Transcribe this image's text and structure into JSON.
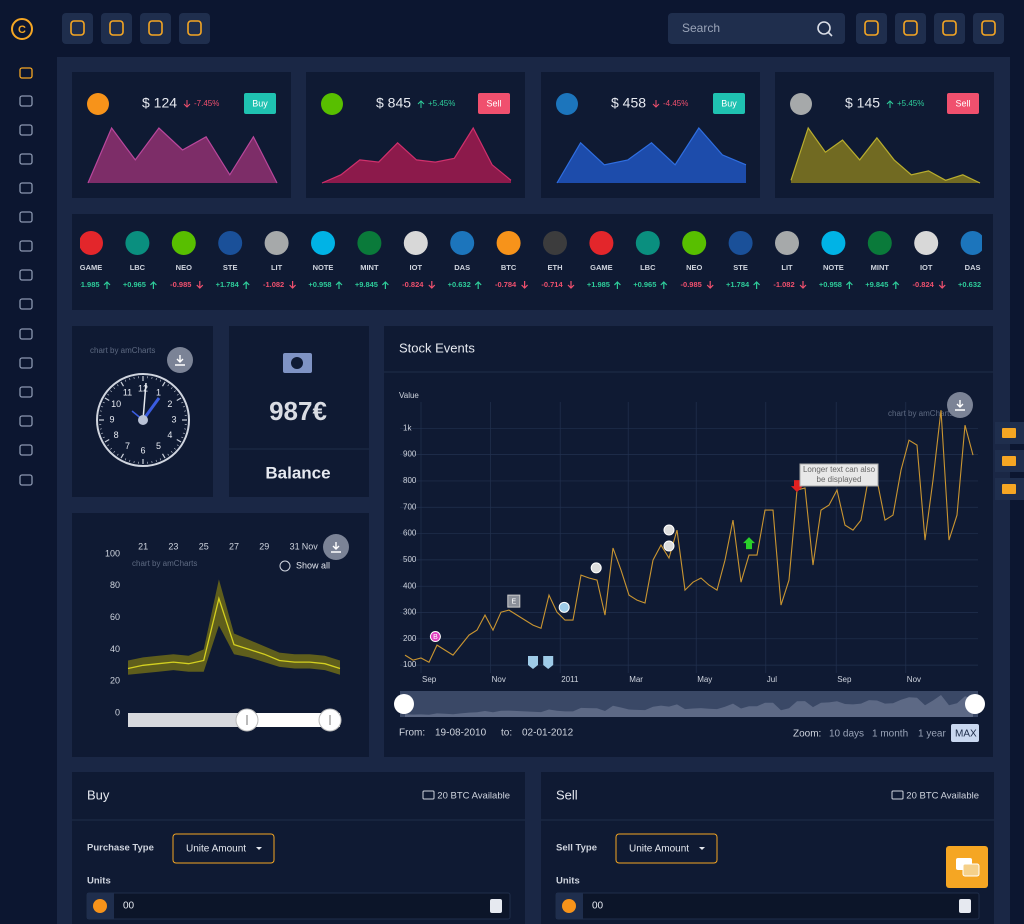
{
  "app": {
    "search": "Search"
  },
  "cards": [
    {
      "price": "$ 124",
      "change": "-7.45%",
      "action": "Buy",
      "action_color": "#1fc2b1",
      "icon_color": "#f7931a",
      "fill": "#7d2d68",
      "stroke": "#b9479c",
      "values": [
        0,
        100,
        42,
        100,
        60,
        84,
        15,
        84,
        0
      ]
    },
    {
      "price": "$ 845",
      "change": "+5.45%",
      "action": "Sell",
      "action_color": "#f0506e",
      "icon_color": "#58bf00",
      "fill": "#8c1a4b",
      "stroke": "#d0306c",
      "values": [
        0,
        15,
        42,
        38,
        73,
        42,
        38,
        45,
        100,
        33,
        5
      ]
    },
    {
      "price": "$ 458",
      "change": "-4.45%",
      "action": "Buy",
      "action_color": "#1fc2b1",
      "icon_color": "#1c75bc",
      "fill": "#1d4cab",
      "stroke": "#2f6ee0",
      "values": [
        0,
        73,
        33,
        42,
        73,
        33,
        100,
        51,
        33
      ]
    },
    {
      "price": "$ 145",
      "change": "+5.45%",
      "action": "Sell",
      "action_color": "#f0506e",
      "icon_color": "#a6a9aa",
      "fill": "#716a22",
      "stroke": "#b8ad2e",
      "values": [
        5,
        100,
        56,
        78,
        42,
        82,
        42,
        15,
        22,
        5,
        15,
        0
      ]
    }
  ],
  "ticker": [
    {
      "name": "GAME",
      "change": "+1.985",
      "color": "#e3262b"
    },
    {
      "name": "LBC",
      "change": "+0.965",
      "color": "#0a8f7f"
    },
    {
      "name": "NEO",
      "change": "-0.985",
      "color": "#58bf00"
    },
    {
      "name": "STE",
      "change": "+1.784",
      "color": "#1a5099"
    },
    {
      "name": "LIT",
      "change": "-1.082",
      "color": "#a6a9aa"
    },
    {
      "name": "NOTE",
      "change": "+0.958",
      "color": "#00b3e6"
    },
    {
      "name": "MINT",
      "change": "+9.845",
      "color": "#0a7a3a"
    },
    {
      "name": "IOT",
      "change": "-0.824",
      "color": "#d8d8d8"
    },
    {
      "name": "DAS",
      "change": "+0.632",
      "color": "#1c75bc"
    },
    {
      "name": "BTC",
      "change": "-0.784",
      "color": "#f7931a"
    },
    {
      "name": "ETH",
      "change": "-0.714",
      "color": "#3c3c3d"
    }
  ],
  "clock": {
    "credit": "chart by amCharts",
    "numbers": [
      12,
      1,
      2,
      3,
      4,
      5,
      6,
      7,
      8,
      9,
      10,
      11
    ]
  },
  "balance": {
    "amount": "987€",
    "label": "Balance"
  },
  "chart_data": [
    {
      "type": "range",
      "credit": "chart by amCharts",
      "show_all": "Show all",
      "color": "#d4d020",
      "band_color": "#5f5e1c",
      "x": [
        20,
        21,
        22,
        23,
        24,
        25,
        26,
        27,
        28,
        29,
        30,
        31,
        32,
        33,
        34
      ],
      "values": [
        28,
        30,
        31,
        32,
        31,
        33,
        72,
        43,
        40,
        37,
        33,
        32,
        32,
        31,
        28
      ],
      "low": [
        24,
        25,
        26,
        27,
        26,
        26,
        55,
        37,
        35,
        32,
        29,
        28,
        28,
        27,
        24
      ],
      "high": [
        33,
        35,
        36,
        37,
        36,
        40,
        84,
        50,
        46,
        42,
        38,
        37,
        37,
        36,
        33
      ],
      "xlim": [
        20,
        34
      ],
      "ylim": [
        0,
        100
      ],
      "yticks": [
        0,
        20,
        40,
        60,
        80,
        100
      ],
      "xticks": [
        21,
        23,
        25,
        27,
        29,
        31,
        {
          "value": 32,
          "label": "Nov"
        }
      ]
    },
    {
      "type": "line",
      "title": "Stock Events",
      "ylabel": "Value",
      "credit": "chart by amCharts",
      "color": "#c99531",
      "grid": true,
      "values": [
        138,
        119,
        127,
        111,
        176,
        157,
        138,
        176,
        214,
        233,
        290,
        233,
        301,
        309,
        290,
        271,
        252,
        240,
        366,
        301,
        271,
        271,
        442,
        431,
        423,
        290,
        545,
        461,
        366,
        347,
        336,
        499,
        556,
        507,
        613,
        385,
        415,
        431,
        404,
        385,
        499,
        651,
        415,
        518,
        518,
        689,
        689,
        328,
        423,
        765,
        773,
        480,
        689,
        708,
        765,
        632,
        613,
        651,
        822,
        803,
        651,
        670,
        841,
        955,
        936,
        575,
        803,
        1069,
        575,
        670,
        1012,
        898
      ],
      "xlim": [
        0,
        71
      ],
      "ylim": [
        70,
        1100
      ],
      "yticks": [
        100,
        200,
        300,
        400,
        500,
        600,
        700,
        800,
        900,
        {
          "value": 1000,
          "label": "1k"
        }
      ],
      "xticks": [
        {
          "value": 2,
          "label": "Sep"
        },
        {
          "value": 10.7,
          "label": "Nov"
        },
        {
          "value": 19.4,
          "label": "2011"
        },
        {
          "value": 27.9,
          "label": "Mar"
        },
        {
          "value": 36.4,
          "label": "May"
        },
        {
          "value": 45.1,
          "label": "Jul"
        },
        {
          "value": 53.9,
          "label": "Sep"
        },
        {
          "value": 62.6,
          "label": "Nov"
        }
      ],
      "events": [
        {
          "x": 3.8,
          "label": "B",
          "shape": "circle",
          "color": "#e040c0"
        },
        {
          "x": 13.6,
          "label": "E",
          "shape": "square",
          "color": "#8a8f99"
        },
        {
          "x": 16,
          "shape": "flag",
          "color": "#9ecbe8"
        },
        {
          "x": 17.9,
          "shape": "flag",
          "color": "#9ecbe8"
        },
        {
          "x": 19.9,
          "shape": "circle",
          "color": "#9ecbe8"
        },
        {
          "x": 23.9,
          "shape": "circle",
          "color": "#dddddd"
        },
        {
          "x": 33,
          "shape": "circle",
          "color": "#dddddd"
        },
        {
          "x": 33,
          "shape": "circle",
          "color": "#dddddd"
        },
        {
          "x": 43,
          "shape": "arrow-up",
          "color": "#2ad02a"
        },
        {
          "x": 49,
          "shape": "arrow-down",
          "color": "#e02020",
          "text": "Longer text can also be displayed"
        }
      ],
      "from_label": "From:",
      "from": "19-08-2010",
      "to_label": "to:",
      "to": "02-01-2012",
      "zoom_label": "Zoom:",
      "zoom": [
        "10 days",
        "1 month",
        "1 year",
        "MAX"
      ],
      "zoom_active": 3
    }
  ],
  "buy": {
    "title": "Buy",
    "available": "20 BTC Available",
    "type_label": "Purchase Type",
    "type_value": "Unite Amount",
    "units_label": "Units",
    "units_value": "00"
  },
  "sell": {
    "title": "Sell",
    "available": "20 BTC Available",
    "type_label": "Sell Type",
    "type_value": "Unite Amount",
    "units_label": "Units",
    "units_value": "00"
  }
}
